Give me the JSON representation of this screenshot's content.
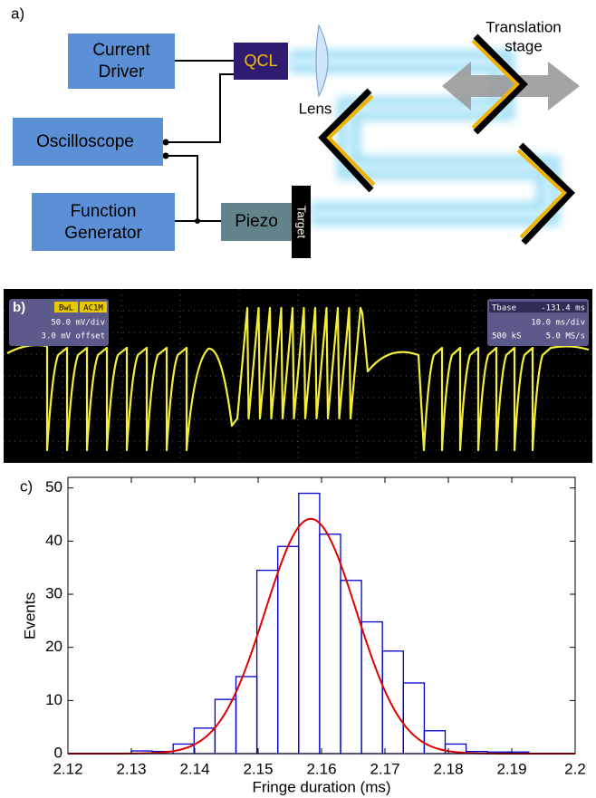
{
  "panel_a": {
    "label": "a)",
    "current_driver": [
      "Current",
      "Driver"
    ],
    "qcl": "QCL",
    "oscilloscope": "Oscilloscope",
    "function_generator": [
      "Function",
      "Generator"
    ],
    "piezo": "Piezo",
    "target": "Target",
    "lens": "Lens",
    "translation_stage": [
      "Translation",
      "stage"
    ]
  },
  "panel_b": {
    "label": "b)",
    "channel": [
      "BwL",
      "AC1M"
    ],
    "scale": "50.0 mV/div",
    "offset": "3.0 mV offset",
    "timebase_label": "Tbase",
    "timebase_value": "-131.4 ms",
    "time_div": "10.0 ms/div",
    "samples": "500 kS",
    "rate": "5.0 MS/s"
  },
  "chart_data": {
    "type": "histogram",
    "panel_label": "c)",
    "x_label": "Fringe duration (ms)",
    "y_label": "Events",
    "bins": [
      2.13,
      2.1333,
      2.1366,
      2.1399,
      2.1432,
      2.1465,
      2.1498,
      2.1531,
      2.1564,
      2.1597,
      2.163,
      2.1663,
      2.1696,
      2.1729,
      2.1762,
      2.1795,
      2.1828,
      2.1861,
      2.1894,
      2.1927
    ],
    "values": [
      0.5,
      0.4,
      1.8,
      4.8,
      10.2,
      14.5,
      34.5,
      39,
      49,
      41.3,
      32.6,
      24.8,
      19.3,
      13.3,
      4.3,
      1.8,
      0.4,
      0.3,
      0.3
    ],
    "color": "#0000cc",
    "fit": {
      "type": "gaussian",
      "amplitude": 44.2,
      "mean": 2.1583,
      "sigma": 0.0072,
      "color": "#e00000"
    },
    "xlim": [
      2.12,
      2.2
    ],
    "ylim": [
      0,
      52
    ],
    "xticks": [
      2.12,
      2.13,
      2.14,
      2.15,
      2.16,
      2.17,
      2.18,
      2.19,
      2.2
    ],
    "yticks": [
      0,
      10,
      20,
      30,
      40,
      50
    ]
  }
}
